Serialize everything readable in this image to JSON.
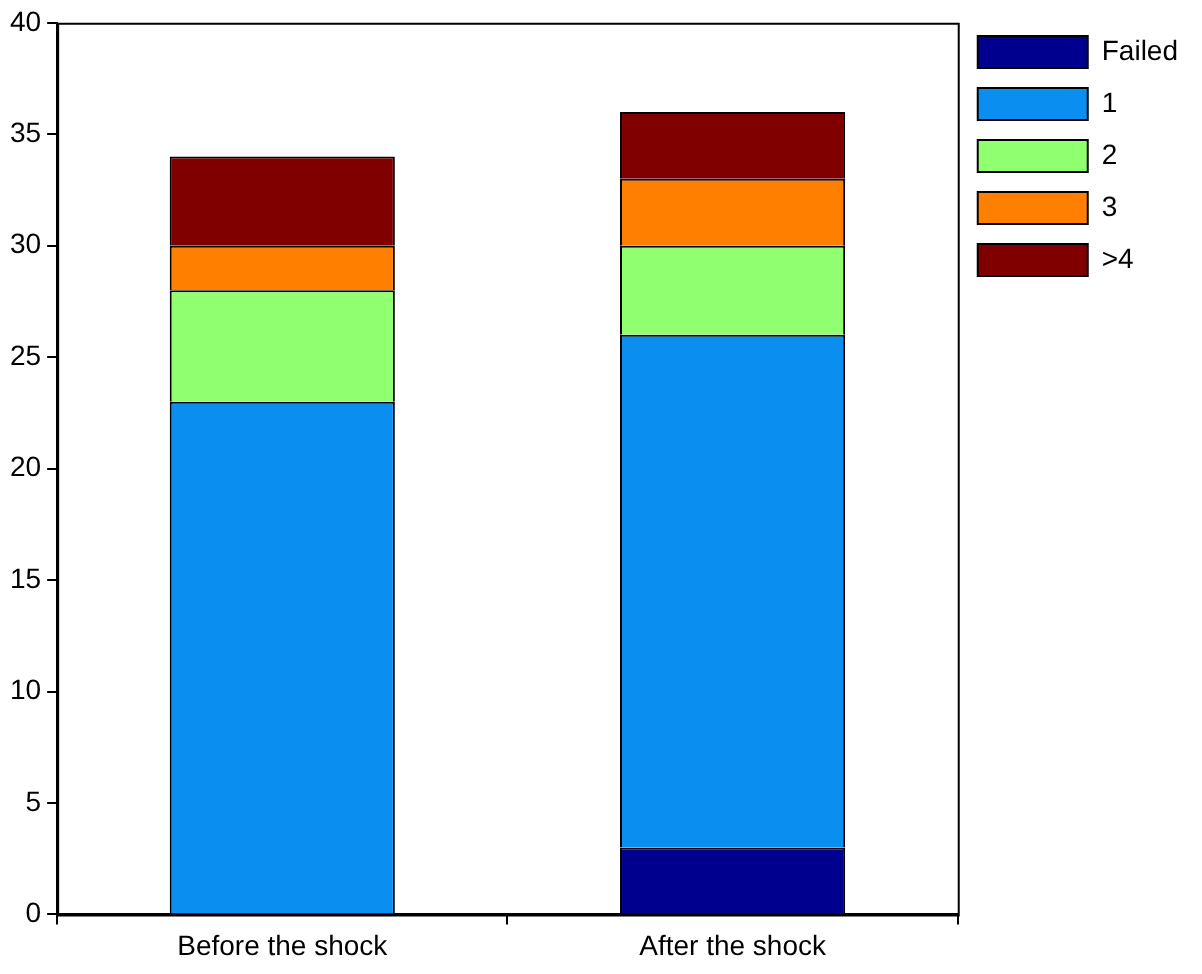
{
  "chart_data": {
    "type": "bar",
    "stacked": true,
    "categories": [
      "Before the shock",
      "After the shock"
    ],
    "series": [
      {
        "name": "Failed",
        "color": "#00008f",
        "values": [
          0,
          3
        ]
      },
      {
        "name": "1",
        "color": "#0a8ff0",
        "values": [
          23,
          23
        ]
      },
      {
        "name": "2",
        "color": "#90ff70",
        "values": [
          5,
          4
        ]
      },
      {
        "name": "3",
        "color": "#ff7f00",
        "values": [
          2,
          3
        ]
      },
      {
        "name": ">4",
        "color": "#800000",
        "values": [
          4,
          3
        ]
      }
    ],
    "ylim": [
      0,
      40
    ],
    "yticks": [
      0,
      5,
      10,
      15,
      20,
      25,
      30,
      35,
      40
    ],
    "grid": false,
    "legend": "top right"
  }
}
